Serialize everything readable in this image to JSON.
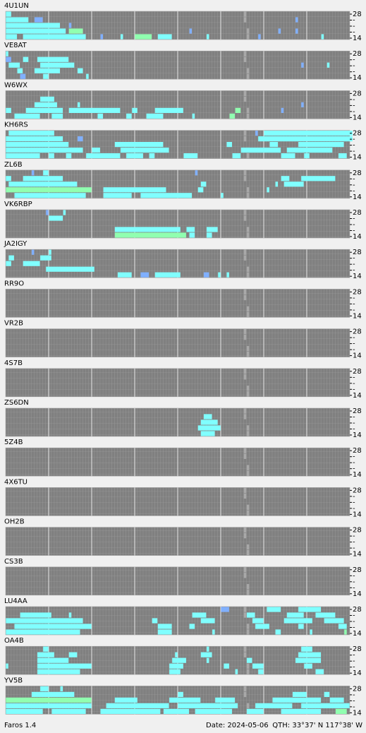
{
  "rowLabels": [
    "28",
    "-",
    "-",
    "-",
    "14"
  ],
  "footer": {
    "app": "Faros 1.4",
    "date": "Date: 2024-05-06",
    "qth": "QTH: 33°37' N  117°38' W"
  },
  "levelColors": [
    "#80ffff",
    "#90ffb0",
    "#80b0ff",
    "#8080ff"
  ],
  "stations": [
    {
      "call": "4U1UN",
      "spans": [
        [
          0,
          0,
          2,
          1
        ],
        [
          1,
          0,
          8,
          1
        ],
        [
          1,
          10,
          13,
          3
        ],
        [
          2,
          0,
          19,
          1
        ],
        [
          2,
          22,
          23,
          3
        ],
        [
          3,
          0,
          21,
          1
        ],
        [
          3,
          22,
          27,
          2
        ],
        [
          4,
          0,
          4,
          1
        ],
        [
          4,
          6,
          28,
          1
        ],
        [
          4,
          33,
          34,
          3
        ],
        [
          4,
          40,
          41,
          1
        ],
        [
          4,
          45,
          51,
          2
        ],
        [
          4,
          53,
          58,
          1
        ],
        [
          3,
          64,
          65,
          3
        ],
        [
          4,
          70,
          71,
          1
        ],
        [
          4,
          88,
          89,
          3
        ],
        [
          3,
          95,
          96,
          3
        ],
        [
          3,
          101,
          102,
          3
        ],
        [
          1,
          101,
          102,
          3
        ],
        [
          4,
          110,
          111,
          1
        ]
      ]
    },
    {
      "call": "VE8AT",
      "spans": [
        [
          0,
          0,
          1,
          1
        ],
        [
          1,
          0,
          2,
          3
        ],
        [
          1,
          6,
          8,
          1
        ],
        [
          1,
          11,
          22,
          1
        ],
        [
          2,
          1,
          5,
          1
        ],
        [
          2,
          12,
          24,
          1
        ],
        [
          3,
          4,
          6,
          1
        ],
        [
          3,
          10,
          19,
          1
        ],
        [
          3,
          25,
          27,
          1
        ],
        [
          4,
          5,
          7,
          3
        ],
        [
          4,
          13,
          15,
          1
        ],
        [
          4,
          28,
          29,
          1
        ],
        [
          2,
          103,
          104,
          3
        ],
        [
          2,
          112,
          113,
          1
        ]
      ]
    },
    {
      "call": "W6WX",
      "spans": [
        [
          1,
          12,
          17,
          1
        ],
        [
          2,
          10,
          18,
          1
        ],
        [
          2,
          25,
          26,
          1
        ],
        [
          3,
          0,
          2,
          1
        ],
        [
          3,
          7,
          20,
          1
        ],
        [
          3,
          22,
          40,
          1
        ],
        [
          3,
          44,
          46,
          1
        ],
        [
          3,
          52,
          62,
          1
        ],
        [
          3,
          80,
          82,
          2
        ],
        [
          4,
          3,
          12,
          1
        ],
        [
          4,
          16,
          20,
          1
        ],
        [
          4,
          32,
          34,
          1
        ],
        [
          4,
          42,
          44,
          1
        ],
        [
          4,
          49,
          55,
          1
        ],
        [
          4,
          65,
          66,
          1
        ],
        [
          4,
          78,
          80,
          2
        ],
        [
          3,
          96,
          97,
          3
        ],
        [
          2,
          103,
          104,
          3
        ]
      ]
    },
    {
      "call": "KH6RS",
      "spans": [
        [
          0,
          1,
          17,
          1
        ],
        [
          0,
          87,
          88,
          3
        ],
        [
          0,
          90,
          121,
          1
        ],
        [
          1,
          0,
          20,
          1
        ],
        [
          1,
          25,
          27,
          3
        ],
        [
          1,
          88,
          121,
          1
        ],
        [
          2,
          0,
          22,
          1
        ],
        [
          2,
          38,
          55,
          1
        ],
        [
          2,
          77,
          79,
          1
        ],
        [
          2,
          92,
          95,
          1
        ],
        [
          2,
          102,
          118,
          1
        ],
        [
          3,
          0,
          27,
          1
        ],
        [
          3,
          30,
          33,
          1
        ],
        [
          3,
          40,
          57,
          1
        ],
        [
          3,
          82,
          96,
          1
        ],
        [
          3,
          98,
          114,
          1
        ],
        [
          4,
          0,
          12,
          1
        ],
        [
          4,
          15,
          17,
          1
        ],
        [
          4,
          21,
          23,
          1
        ],
        [
          4,
          28,
          40,
          1
        ],
        [
          4,
          42,
          48,
          1
        ],
        [
          4,
          50,
          52,
          1
        ],
        [
          4,
          62,
          67,
          1
        ],
        [
          4,
          79,
          82,
          1
        ],
        [
          4,
          96,
          101,
          1
        ],
        [
          4,
          104,
          106,
          1
        ],
        [
          4,
          116,
          119,
          1
        ]
      ]
    },
    {
      "call": "ZL6B",
      "spans": [
        [
          0,
          9,
          10,
          3
        ],
        [
          0,
          13,
          15,
          1
        ],
        [
          0,
          66,
          67,
          3
        ],
        [
          1,
          0,
          2,
          1
        ],
        [
          1,
          6,
          20,
          1
        ],
        [
          1,
          96,
          99,
          1
        ],
        [
          1,
          103,
          115,
          1
        ],
        [
          2,
          1,
          25,
          1
        ],
        [
          2,
          68,
          70,
          1
        ],
        [
          2,
          94,
          95,
          1
        ],
        [
          2,
          97,
          104,
          1
        ],
        [
          3,
          0,
          30,
          2
        ],
        [
          3,
          34,
          56,
          1
        ],
        [
          3,
          67,
          69,
          1
        ],
        [
          3,
          91,
          92,
          1
        ],
        [
          4,
          3,
          28,
          1
        ],
        [
          4,
          34,
          44,
          1
        ],
        [
          4,
          47,
          65,
          1
        ],
        [
          4,
          75,
          76,
          1
        ]
      ]
    },
    {
      "call": "VK6RBP",
      "spans": [
        [
          0,
          14,
          15,
          3
        ],
        [
          0,
          20,
          21,
          1
        ],
        [
          1,
          15,
          20,
          1
        ],
        [
          3,
          38,
          61,
          1
        ],
        [
          3,
          63,
          66,
          1
        ],
        [
          3,
          70,
          74,
          1
        ],
        [
          4,
          38,
          63,
          2
        ],
        [
          4,
          64,
          66,
          1
        ],
        [
          4,
          70,
          72,
          1
        ]
      ]
    },
    {
      "call": "JA2IGY",
      "spans": [
        [
          0,
          9,
          10,
          3
        ],
        [
          0,
          15,
          16,
          1
        ],
        [
          1,
          1,
          3,
          1
        ],
        [
          1,
          12,
          16,
          1
        ],
        [
          2,
          0,
          2,
          1
        ],
        [
          2,
          6,
          12,
          1
        ],
        [
          3,
          14,
          31,
          1
        ],
        [
          4,
          39,
          44,
          1
        ],
        [
          4,
          47,
          50,
          3
        ],
        [
          4,
          52,
          61,
          1
        ],
        [
          4,
          69,
          71,
          3
        ],
        [
          4,
          74,
          75,
          1
        ],
        [
          4,
          77,
          78,
          1
        ]
      ]
    },
    {
      "call": "RR9O",
      "spans": []
    },
    {
      "call": "VR2B",
      "spans": []
    },
    {
      "call": "4S7B",
      "spans": []
    },
    {
      "call": "ZS6DN",
      "spans": [
        [
          1,
          69,
          72,
          1
        ],
        [
          2,
          68,
          74,
          1
        ],
        [
          3,
          67,
          75,
          1
        ],
        [
          4,
          68,
          73,
          1
        ]
      ]
    },
    {
      "call": "5Z4B",
      "spans": []
    },
    {
      "call": "4X6TU",
      "spans": []
    },
    {
      "call": "OH2B",
      "spans": []
    },
    {
      "call": "CS3B",
      "spans": []
    },
    {
      "call": "LU4AA",
      "spans": [
        [
          0,
          75,
          78,
          3
        ],
        [
          0,
          91,
          96,
          1
        ],
        [
          0,
          102,
          110,
          1
        ],
        [
          1,
          5,
          16,
          1
        ],
        [
          1,
          22,
          23,
          1
        ],
        [
          1,
          65,
          70,
          1
        ],
        [
          1,
          84,
          87,
          1
        ],
        [
          1,
          98,
          104,
          1
        ],
        [
          1,
          108,
          115,
          1
        ],
        [
          2,
          0,
          27,
          1
        ],
        [
          2,
          51,
          53,
          1
        ],
        [
          2,
          68,
          73,
          1
        ],
        [
          2,
          86,
          90,
          1
        ],
        [
          2,
          97,
          107,
          1
        ],
        [
          2,
          111,
          118,
          1
        ],
        [
          3,
          3,
          30,
          1
        ],
        [
          3,
          53,
          58,
          1
        ],
        [
          3,
          64,
          66,
          1
        ],
        [
          3,
          87,
          92,
          1
        ],
        [
          3,
          102,
          104,
          1
        ],
        [
          3,
          116,
          119,
          1
        ],
        [
          4,
          0,
          26,
          1
        ],
        [
          4,
          53,
          58,
          1
        ],
        [
          4,
          72,
          73,
          1
        ],
        [
          4,
          94,
          96,
          1
        ],
        [
          4,
          106,
          107,
          1
        ],
        [
          4,
          118,
          119,
          2
        ]
      ]
    },
    {
      "call": "OA4B",
      "spans": [
        [
          0,
          13,
          15,
          1
        ],
        [
          0,
          70,
          71,
          1
        ],
        [
          0,
          103,
          107,
          1
        ],
        [
          1,
          11,
          17,
          1
        ],
        [
          1,
          22,
          25,
          1
        ],
        [
          1,
          59,
          60,
          1
        ],
        [
          1,
          68,
          72,
          1
        ],
        [
          1,
          102,
          110,
          1
        ],
        [
          2,
          11,
          22,
          1
        ],
        [
          2,
          58,
          63,
          1
        ],
        [
          2,
          70,
          71,
          1
        ],
        [
          2,
          84,
          86,
          1
        ],
        [
          2,
          101,
          110,
          1
        ],
        [
          3,
          0,
          1,
          1
        ],
        [
          3,
          11,
          30,
          1
        ],
        [
          3,
          57,
          62,
          1
        ],
        [
          3,
          76,
          78,
          1
        ],
        [
          3,
          86,
          90,
          1
        ],
        [
          3,
          104,
          107,
          1
        ],
        [
          4,
          11,
          26,
          1
        ],
        [
          4,
          57,
          61,
          1
        ],
        [
          4,
          80,
          81,
          1
        ],
        [
          4,
          88,
          90,
          1
        ],
        [
          4,
          108,
          111,
          1
        ]
      ]
    },
    {
      "call": "YV5B",
      "spans": [
        [
          0,
          12,
          15,
          1
        ],
        [
          0,
          19,
          20,
          1
        ],
        [
          1,
          9,
          24,
          1
        ],
        [
          1,
          60,
          62,
          1
        ],
        [
          1,
          100,
          105,
          1
        ],
        [
          1,
          111,
          113,
          1
        ],
        [
          2,
          0,
          30,
          2
        ],
        [
          2,
          38,
          46,
          1
        ],
        [
          2,
          57,
          68,
          1
        ],
        [
          2,
          73,
          80,
          1
        ],
        [
          2,
          93,
          110,
          1
        ],
        [
          2,
          113,
          118,
          1
        ],
        [
          3,
          0,
          30,
          1
        ],
        [
          3,
          35,
          57,
          1
        ],
        [
          3,
          60,
          81,
          1
        ],
        [
          3,
          87,
          100,
          1
        ],
        [
          3,
          103,
          120,
          1
        ],
        [
          4,
          0,
          13,
          1
        ],
        [
          4,
          16,
          28,
          1
        ],
        [
          4,
          33,
          54,
          1
        ],
        [
          4,
          55,
          64,
          1
        ],
        [
          4,
          66,
          79,
          1
        ],
        [
          4,
          84,
          90,
          1
        ],
        [
          4,
          96,
          110,
          1
        ],
        [
          4,
          115,
          119,
          2
        ]
      ]
    }
  ]
}
